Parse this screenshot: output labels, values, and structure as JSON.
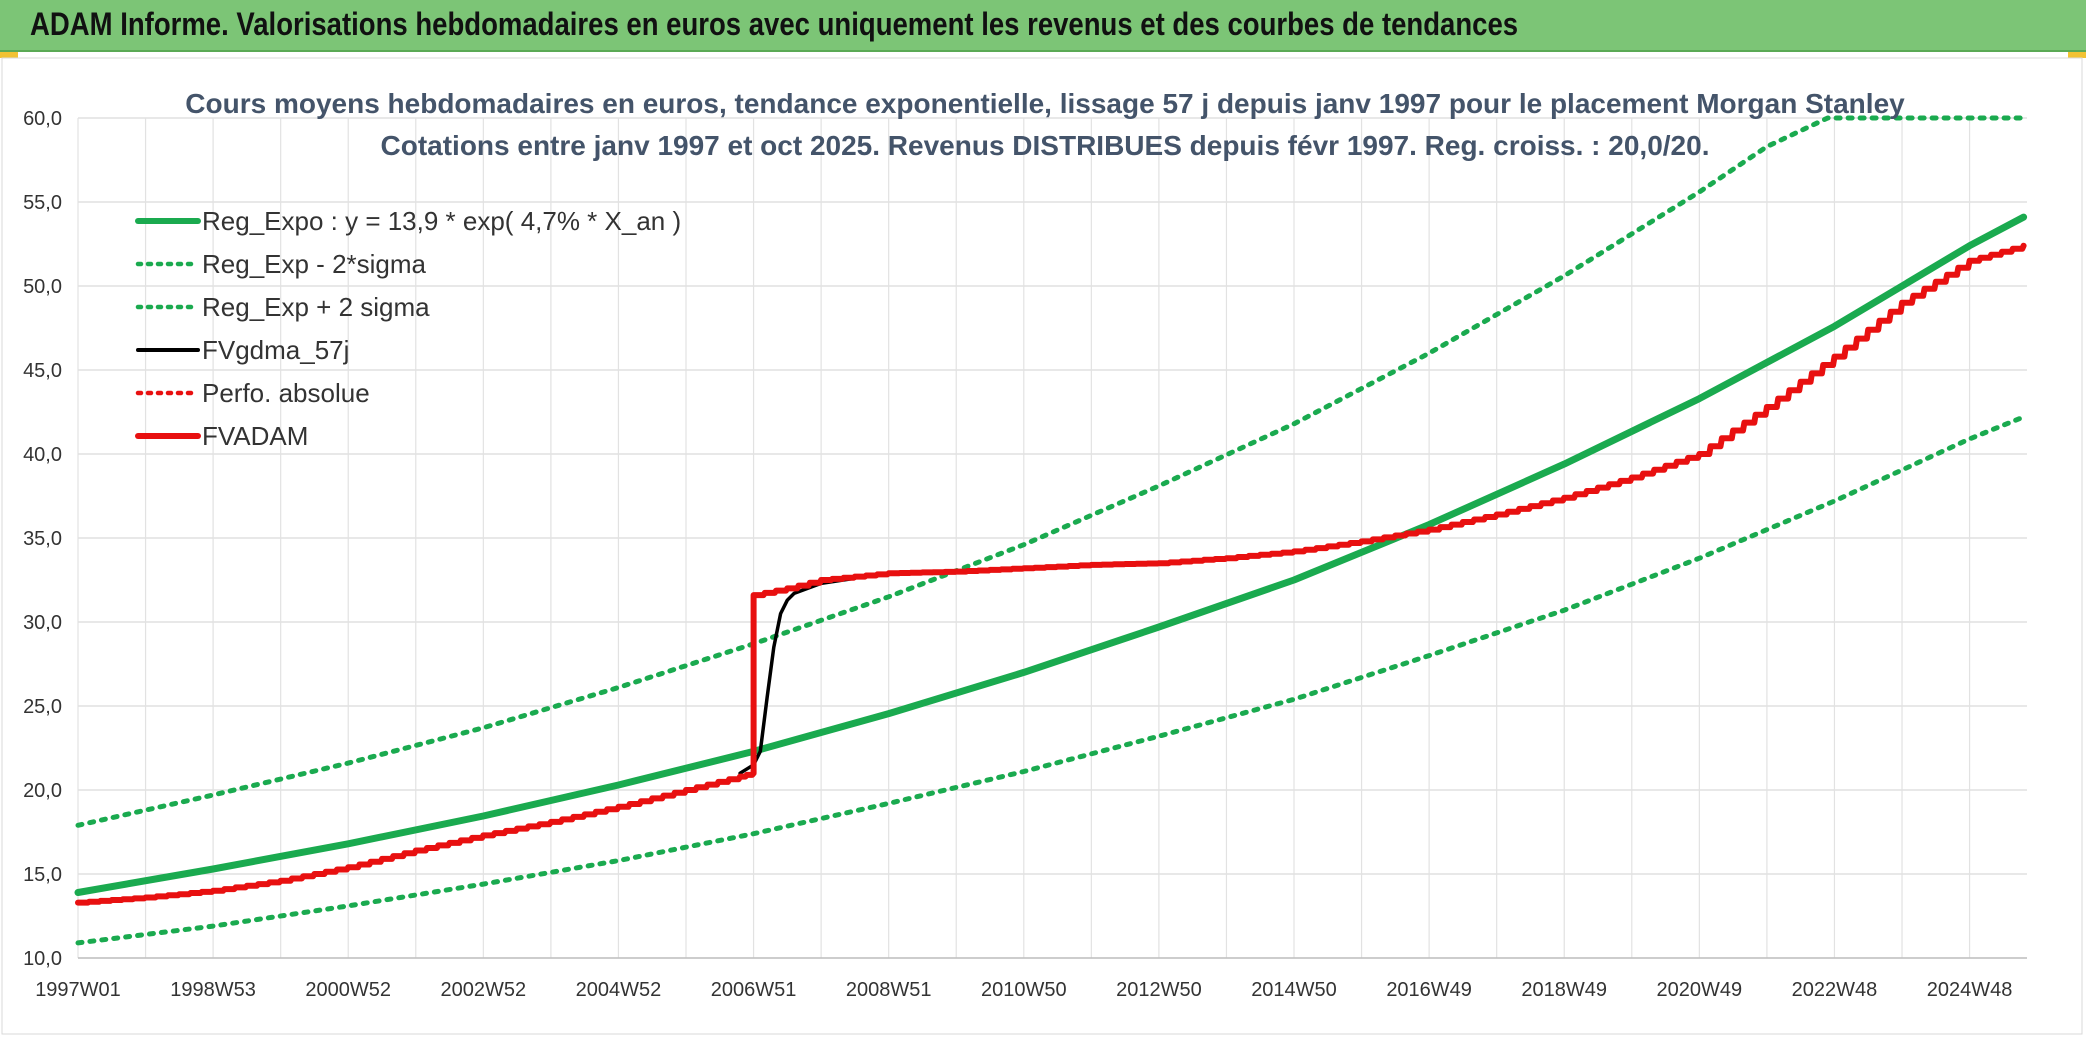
{
  "banner": {
    "title": "ADAM Informe. Valorisations hebdomadaires en euros avec uniquement les revenus et des courbes de tendances"
  },
  "colors": {
    "banner_bg": "#7cc576",
    "green": "#1aaa4f",
    "black": "#000000",
    "red": "#e81010",
    "corner": "#f2c233"
  },
  "chart_data": {
    "type": "line",
    "title_lines": [
      "Cours moyens hebdomadaires en euros, tendance exponentielle, lissage 57 j depuis janv 1997 pour le placement Morgan Stanley",
      "Cotations entre janv 1997 et oct 2025. Revenus DISTRIBUES depuis févr 1997. Reg. croiss. : 20,0/20."
    ],
    "ylim": [
      10,
      60
    ],
    "yticks": [
      "10,0",
      "15,0",
      "20,0",
      "25,0",
      "30,0",
      "35,0",
      "40,0",
      "45,0",
      "50,0",
      "55,0",
      "60,0"
    ],
    "x_tick_labels": [
      "1997W01",
      "1998W53",
      "2000W52",
      "2002W52",
      "2004W52",
      "2006W51",
      "2008W51",
      "2010W50",
      "2012W50",
      "2014W50",
      "2016W49",
      "2018W49",
      "2020W49",
      "2022W48",
      "2024W48"
    ],
    "x_tick_years": [
      1997.0,
      1999.0,
      2001.0,
      2003.0,
      2005.0,
      2007.0,
      2009.0,
      2011.0,
      2013.0,
      2015.0,
      2017.0,
      2019.0,
      2021.0,
      2023.0,
      2025.0
    ],
    "xlim": [
      1997.0,
      2025.85
    ],
    "grid": true,
    "legend_position": "top-left",
    "series": [
      {
        "name": "Reg_Expo : y = 13,9 * exp( 4,7% *  X_an )",
        "style": "solid-thick",
        "color": "#1aaa4f",
        "x": [
          1997.0,
          1999.0,
          2001.0,
          2003.0,
          2005.0,
          2007.0,
          2009.0,
          2011.0,
          2013.0,
          2015.0,
          2017.0,
          2019.0,
          2021.0,
          2023.0,
          2025.0,
          2025.8
        ],
        "y": [
          13.9,
          15.3,
          16.8,
          18.45,
          20.3,
          22.3,
          24.55,
          27.0,
          29.7,
          32.5,
          35.8,
          39.4,
          43.3,
          47.6,
          52.4,
          54.1
        ]
      },
      {
        "name": "Reg_Exp - 2*sigma",
        "style": "dotted",
        "color": "#1aaa4f",
        "x": [
          1997.0,
          1999.0,
          2001.0,
          2003.0,
          2005.0,
          2007.0,
          2009.0,
          2011.0,
          2013.0,
          2015.0,
          2017.0,
          2019.0,
          2021.0,
          2023.0,
          2025.0,
          2025.8
        ],
        "y": [
          10.9,
          11.9,
          13.1,
          14.4,
          15.8,
          17.4,
          19.2,
          21.1,
          23.2,
          25.4,
          28.0,
          30.7,
          33.8,
          37.2,
          40.9,
          42.2
        ]
      },
      {
        "name": "Reg_Exp + 2 sigma",
        "style": "dotted",
        "color": "#1aaa4f",
        "x": [
          1997.0,
          1999.0,
          2001.0,
          2003.0,
          2005.0,
          2007.0,
          2009.0,
          2011.0,
          2013.0,
          2015.0,
          2017.0,
          2019.0,
          2021.0,
          2022.0,
          2022.9,
          2025.8
        ],
        "y": [
          17.9,
          19.7,
          21.6,
          23.7,
          26.1,
          28.7,
          31.5,
          34.6,
          38.1,
          41.8,
          46.0,
          50.6,
          55.6,
          58.3,
          60.0,
          60.0
        ]
      },
      {
        "name": "FVgdma_57j",
        "style": "solid",
        "color": "#000000",
        "x": [
          2006.8,
          2007.0,
          2007.1,
          2007.2,
          2007.3,
          2007.4,
          2007.5,
          2007.6,
          2007.8,
          2008.0,
          2008.5
        ],
        "y": [
          21.0,
          21.5,
          22.3,
          25.5,
          28.5,
          30.5,
          31.3,
          31.7,
          32.0,
          32.3,
          32.6
        ]
      },
      {
        "name": "Perfo. absolue",
        "style": "dotted",
        "color": "#e81010",
        "x": [],
        "y": []
      },
      {
        "name": "FVADAM",
        "style": "solid-thick-step",
        "color": "#e81010",
        "x": [
          1997.0,
          1998.0,
          1999.0,
          2000.0,
          2001.0,
          2002.0,
          2003.0,
          2004.0,
          2005.0,
          2006.0,
          2006.8,
          2007.0,
          2007.0,
          2007.5,
          2008.0,
          2009.0,
          2010.0,
          2011.0,
          2012.0,
          2013.0,
          2014.0,
          2015.0,
          2016.0,
          2017.0,
          2018.0,
          2019.0,
          2020.0,
          2021.0,
          2022.0,
          2023.0,
          2024.0,
          2025.0,
          2025.8
        ],
        "y": [
          13.3,
          13.6,
          14.0,
          14.6,
          15.4,
          16.4,
          17.3,
          18.1,
          19.0,
          20.0,
          20.8,
          21.0,
          31.6,
          32.0,
          32.5,
          32.9,
          33.0,
          33.2,
          33.4,
          33.5,
          33.8,
          34.2,
          34.8,
          35.5,
          36.4,
          37.4,
          38.6,
          40.0,
          42.8,
          45.8,
          49.0,
          51.5,
          52.4
        ]
      }
    ]
  }
}
